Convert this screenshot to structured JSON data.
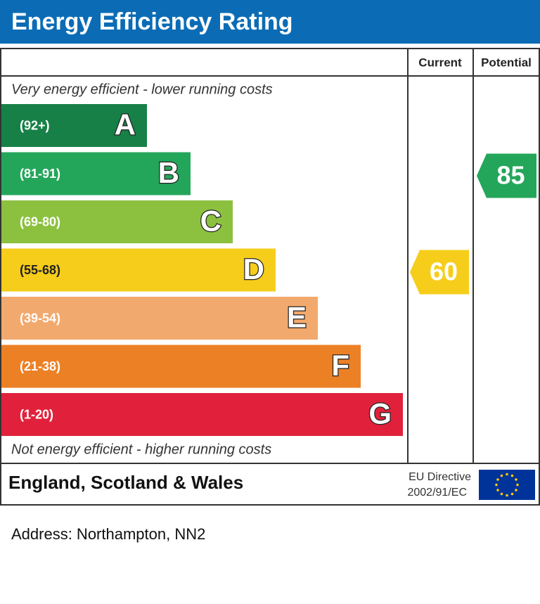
{
  "header": {
    "title": "Energy Efficiency Rating"
  },
  "columns": {
    "current": "Current",
    "potential": "Potential"
  },
  "top_note": "Very energy efficient - lower running costs",
  "bottom_note": "Not energy efficient - higher running costs",
  "bands": [
    {
      "range": "(92+)",
      "letter": "A",
      "color": "#178046"
    },
    {
      "range": "(81-91)",
      "letter": "B",
      "color": "#24a65a"
    },
    {
      "range": "(69-80)",
      "letter": "C",
      "color": "#8cc03f"
    },
    {
      "range": "(55-68)",
      "letter": "D",
      "color": "#f6cd1a"
    },
    {
      "range": "(39-54)",
      "letter": "E",
      "color": "#f2a96d"
    },
    {
      "range": "(21-38)",
      "letter": "F",
      "color": "#ec8025"
    },
    {
      "range": "(1-20)",
      "letter": "G",
      "color": "#e1213b"
    }
  ],
  "current": {
    "value": 60,
    "color": "#f6cd1a"
  },
  "potential": {
    "value": 85,
    "color": "#24a65a"
  },
  "footer": {
    "region": "England, Scotland & Wales",
    "directive_line1": "EU Directive",
    "directive_line2": "2002/91/EC"
  },
  "address": "Address: Northampton, NN2"
}
